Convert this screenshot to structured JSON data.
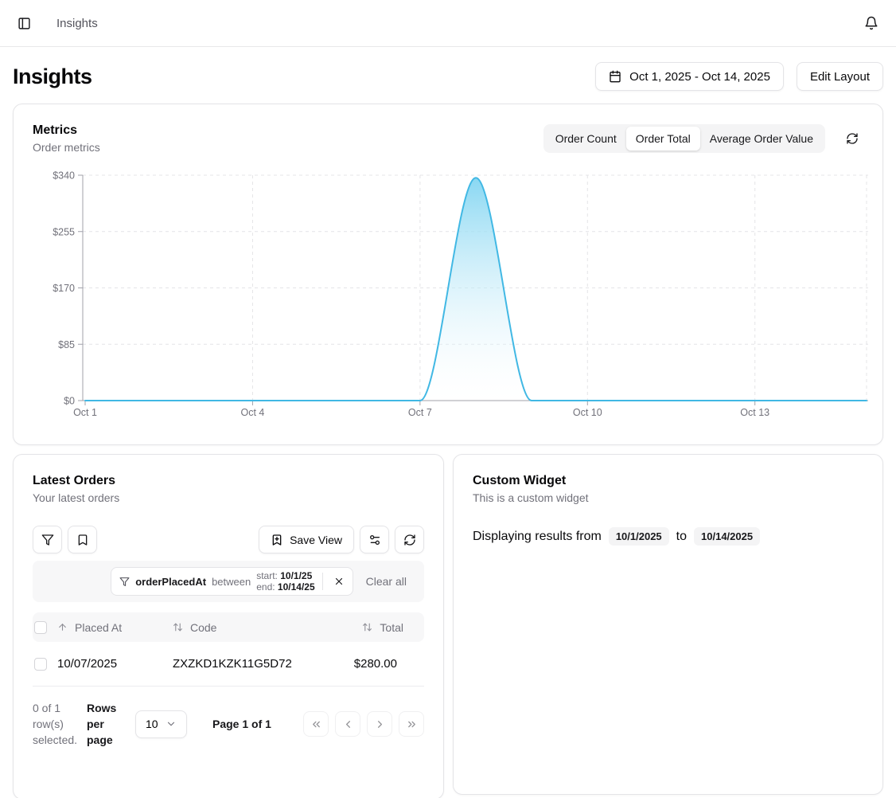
{
  "topbar": {
    "breadcrumb": "Insights"
  },
  "header": {
    "title": "Insights",
    "date_range_label": "Oct 1, 2025 - Oct 14, 2025",
    "edit_layout_label": "Edit Layout"
  },
  "metrics_card": {
    "title": "Metrics",
    "subtitle": "Order metrics",
    "tabs": [
      {
        "label": "Order Count",
        "active": false
      },
      {
        "label": "Order Total",
        "active": true
      },
      {
        "label": "Average Order Value",
        "active": false
      }
    ]
  },
  "chart_data": {
    "type": "area",
    "title": "Order metrics",
    "series_name": "Order Total",
    "x": [
      "Oct 1",
      "Oct 2",
      "Oct 3",
      "Oct 4",
      "Oct 5",
      "Oct 6",
      "Oct 7",
      "Oct 8",
      "Oct 9",
      "Oct 10",
      "Oct 11",
      "Oct 12",
      "Oct 13",
      "Oct 14",
      "Oct 15"
    ],
    "values": [
      0,
      0,
      0,
      0,
      0,
      0,
      0,
      336,
      0,
      0,
      0,
      0,
      0,
      0,
      0
    ],
    "x_tick_labels": [
      "Oct 1",
      "Oct 4",
      "Oct 7",
      "Oct 10",
      "Oct 13"
    ],
    "y_ticks": [
      0,
      85,
      170,
      255,
      340
    ],
    "y_tick_labels": [
      "$0",
      "$85",
      "$170",
      "$255",
      "$340"
    ],
    "ylim": [
      0,
      340
    ],
    "grid": true,
    "legend": false,
    "line_color": "#41b8e4",
    "fill_top": "#7fd4f1",
    "fill_bottom": "#ffffff"
  },
  "orders_card": {
    "title": "Latest Orders",
    "subtitle": "Your latest orders",
    "toolbar": {
      "save_view_label": "Save View"
    },
    "filter": {
      "field": "orderPlacedAt",
      "operator": "between",
      "start_label": "start:",
      "start_value": "10/1/25",
      "end_label": "end:",
      "end_value": "10/14/25",
      "clear_all_label": "Clear all"
    },
    "table": {
      "columns": [
        "Placed At",
        "Code",
        "Total"
      ],
      "rows": [
        {
          "placed_at": "10/07/2025",
          "code": "ZXZKD1KZK11G5D72",
          "total": "$280.00"
        }
      ]
    },
    "footer": {
      "selection_text": "0 of 1 row(s) selected.",
      "rows_per_page_label": "Rows per page",
      "rows_per_page_value": "10",
      "page_text": "Page 1 of 1"
    }
  },
  "custom_widget_card": {
    "title": "Custom Widget",
    "subtitle": "This is a custom widget",
    "body_prefix": "Displaying results from",
    "start_date": "10/1/2025",
    "connector": "to",
    "end_date": "10/14/2025"
  },
  "icons": {
    "sidebar_toggle": "panel-left",
    "notifications": "bell",
    "date_range": "calendar",
    "refresh": "refresh-cw",
    "filter": "funnel",
    "saved_views": "bookmark",
    "save_view": "bookmark-plus",
    "table_settings": "sliders",
    "clear_filter": "x",
    "rows_select": "chevron-down",
    "sort_asc": "arrow-up",
    "sort_both": "arrow-up-down",
    "pagination": [
      "chevrons-left",
      "chevron-left",
      "chevron-right",
      "chevrons-right"
    ]
  },
  "colors": {
    "accent_line": "#41b8e4",
    "border": "#e4e4e7",
    "muted_text": "#71717a",
    "subtle_bg": "#f4f4f5"
  }
}
